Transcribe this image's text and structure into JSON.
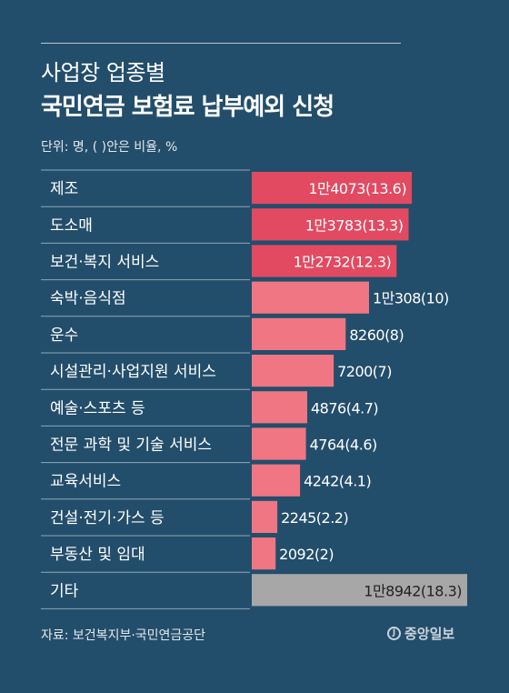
{
  "header": {
    "title_line1": "사업장 업종별",
    "title_line2": "국민연금 보험료 납부예외 신청",
    "unit_note": "단위: 명, ( )안은 비율, %"
  },
  "footer": {
    "source": "자료: 보건복지부·국민연금공단",
    "logo_text": "중앙일보"
  },
  "colors": {
    "background": "#234e6b",
    "bar_top": "#e24a61",
    "bar_other": "#ef7682",
    "bar_etc": "#a7a7a7",
    "row_divider": "#8fa6b8"
  },
  "chart_data": {
    "type": "bar",
    "orientation": "horizontal",
    "categories": [
      "제조",
      "도소매",
      "보건·복지 서비스",
      "숙박·음식점",
      "운수",
      "시설관리·사업지원 서비스",
      "예술·스포츠 등",
      "전문 과학 및 기술 서비스",
      "교육서비스",
      "건설·전기·가스 등",
      "부동산 및 임대",
      "기타"
    ],
    "values": [
      14073,
      13783,
      12732,
      10308,
      8260,
      7200,
      4876,
      4764,
      4242,
      2245,
      2092,
      18942
    ],
    "percent": [
      13.6,
      13.3,
      12.3,
      10,
      8,
      7,
      4.7,
      4.6,
      4.1,
      2.2,
      2,
      18.3
    ],
    "data_labels": [
      "1만4073(13.6)",
      "1만3783(13.3)",
      "1만2732(12.3)",
      "1만308(10)",
      "8260(8)",
      "7200(7)",
      "4876(4.7)",
      "4764(4.6)",
      "4242(4.1)",
      "2245(2.2)",
      "2092(2)",
      "1만8942(18.3)"
    ],
    "units": "명, %",
    "xlim": [
      0,
      18942
    ]
  }
}
